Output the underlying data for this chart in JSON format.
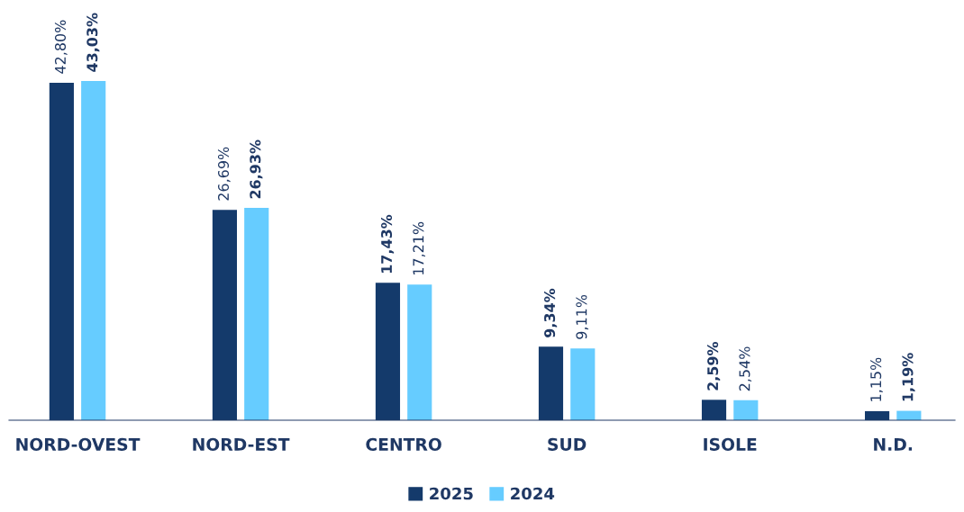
{
  "chart_data": {
    "type": "bar",
    "categories": [
      "NORD-OVEST",
      "NORD-EST",
      "CENTRO",
      "SUD",
      "ISOLE",
      "N.D."
    ],
    "series": [
      {
        "name": "2025",
        "color": "#143a6b",
        "values": [
          42.8,
          26.69,
          17.43,
          9.34,
          2.59,
          1.15
        ],
        "value_labels": [
          "42,80%",
          "26,69%",
          "17,43%",
          "9,34%",
          "2,59%",
          "1,15%"
        ]
      },
      {
        "name": "2024",
        "color": "#66ccff",
        "values": [
          43.03,
          26.93,
          17.21,
          9.11,
          2.54,
          1.19
        ],
        "value_labels": [
          "43,03%",
          "26,93%",
          "17,21%",
          "9,11%",
          "2,54%",
          "1,19%"
        ]
      }
    ],
    "legend": "bottom",
    "grid": false
  }
}
